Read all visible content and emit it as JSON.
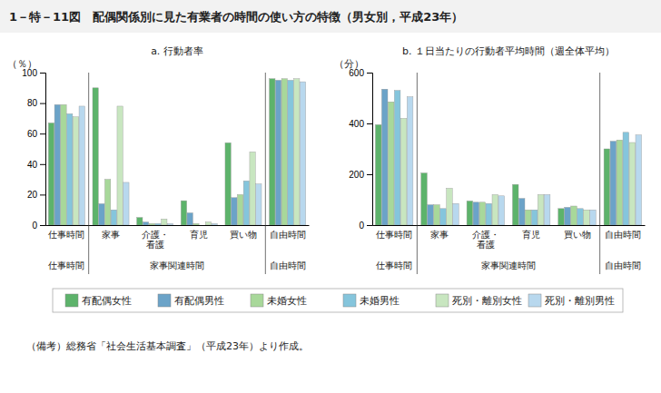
{
  "title": "1－特－11図　配偶関係別に見た有業者の時間の使い方の特徴（男女別，平成23年）",
  "annotations": [
    "（備考）総務省「社会生活基本調査」（平成23年）より作成。"
  ],
  "chart_data": [
    {
      "type": "bar",
      "title": "a. 行動者率",
      "ylabel": "（％）",
      "categories": [
        "仕事時間",
        "家事",
        "介護・\n看護",
        "育児",
        "買い物",
        "自由時間"
      ],
      "annotations": [
        "仕事時間",
        "家事関連時間",
        "自由時間"
      ],
      "ylim": [
        0,
        100
      ],
      "yticks": [
        0,
        20,
        40,
        60,
        80,
        100
      ],
      "legend": "bottom",
      "series": [
        {
          "name": "有配偶女性",
          "color": "#5DB36B",
          "values": [
            67,
            90,
            5,
            16,
            54,
            96
          ]
        },
        {
          "name": "有配偶男性",
          "color": "#6BA3C8",
          "values": [
            79,
            14,
            2,
            8,
            18,
            95
          ]
        },
        {
          "name": "未婚女性",
          "color": "#A8D89A",
          "values": [
            79,
            30,
            1,
            1,
            20,
            96
          ]
        },
        {
          "name": "未婚男性",
          "color": "#85C5DC",
          "values": [
            73,
            10,
            1,
            0,
            29,
            95
          ]
        },
        {
          "name": "死別・離別女性",
          "color": "#C8E6C0",
          "values": [
            71,
            78,
            4,
            2,
            48,
            96
          ]
        },
        {
          "name": "死別・離別男性",
          "color": "#B8D8EE",
          "values": [
            78,
            28,
            1,
            1,
            27,
            94
          ]
        }
      ]
    },
    {
      "type": "bar",
      "title": "b. １日当たりの行動者平均時間（週全体平均）",
      "ylabel": "（分）",
      "categories": [
        "仕事時間",
        "家事",
        "介護・\n看護",
        "育児",
        "買い物",
        "自由時間"
      ],
      "annotations": [
        "仕事時間",
        "家事関連時間",
        "自由時間"
      ],
      "ylim": [
        0,
        600
      ],
      "yticks": [
        0,
        200,
        400,
        600
      ],
      "series": [
        {
          "name": "有配偶女性",
          "color": "#5DB36B",
          "values": [
            395,
            205,
            95,
            160,
            65,
            300
          ]
        },
        {
          "name": "有配偶男性",
          "color": "#6BA3C8",
          "values": [
            535,
            80,
            90,
            105,
            70,
            330
          ]
        },
        {
          "name": "未婚女性",
          "color": "#A8D89A",
          "values": [
            485,
            80,
            90,
            60,
            75,
            335
          ]
        },
        {
          "name": "未婚男性",
          "color": "#85C5DC",
          "values": [
            530,
            65,
            85,
            60,
            65,
            365
          ]
        },
        {
          "name": "死別・離別女性",
          "color": "#C8E6C0",
          "values": [
            420,
            145,
            120,
            120,
            60,
            325
          ]
        },
        {
          "name": "死別・離別男性",
          "color": "#B8D8EE",
          "values": [
            505,
            85,
            115,
            120,
            60,
            355
          ]
        }
      ]
    }
  ]
}
